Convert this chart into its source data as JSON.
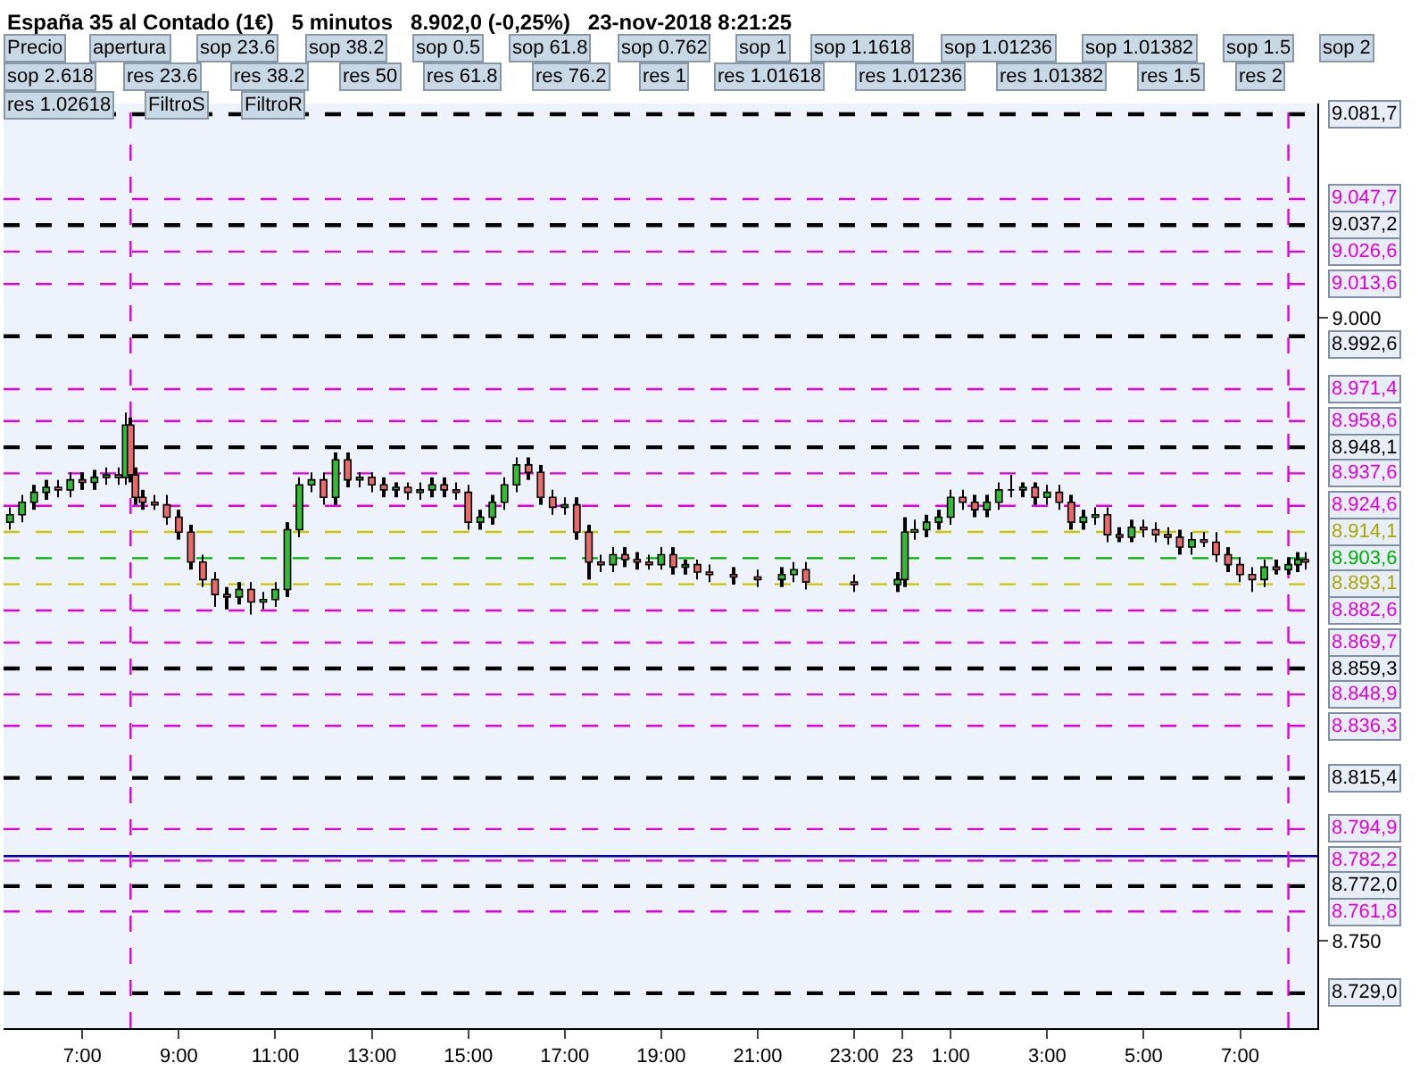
{
  "chart_data": {
    "type": "candlestick",
    "title": "España 35 al Contado (1€)   5 minutos   8.902,0 (-0,25%)   23-nov-2018 8:21:25",
    "x": [
      "2018-11-22T05:30",
      "2018-11-22T05:45",
      "2018-11-22T06:00",
      "2018-11-22T06:15",
      "2018-11-22T06:30",
      "2018-11-22T06:45",
      "2018-11-22T07:00",
      "2018-11-22T07:15",
      "2018-11-22T07:30",
      "2018-11-22T07:45",
      "2018-11-22T07:54",
      "2018-11-22T08:00",
      "2018-11-22T08:06",
      "2018-11-22T08:15",
      "2018-11-22T08:30",
      "2018-11-22T08:45",
      "2018-11-22T09:00",
      "2018-11-22T09:15",
      "2018-11-22T09:30",
      "2018-11-22T09:45",
      "2018-11-22T10:00",
      "2018-11-22T10:15",
      "2018-11-22T10:30",
      "2018-11-22T10:45",
      "2018-11-22T11:00",
      "2018-11-22T11:15",
      "2018-11-22T11:30",
      "2018-11-22T11:45",
      "2018-11-22T12:00",
      "2018-11-22T12:15",
      "2018-11-22T12:30",
      "2018-11-22T12:45",
      "2018-11-22T13:00",
      "2018-11-22T13:15",
      "2018-11-22T13:30",
      "2018-11-22T13:45",
      "2018-11-22T14:00",
      "2018-11-22T14:15",
      "2018-11-22T14:30",
      "2018-11-22T14:45",
      "2018-11-22T15:00",
      "2018-11-22T15:15",
      "2018-11-22T15:30",
      "2018-11-22T15:45",
      "2018-11-22T16:00",
      "2018-11-22T16:15",
      "2018-11-22T16:30",
      "2018-11-22T16:45",
      "2018-11-22T17:00",
      "2018-11-22T17:15",
      "2018-11-22T17:30",
      "2018-11-22T17:45",
      "2018-11-22T18:00",
      "2018-11-22T18:15",
      "2018-11-22T18:30",
      "2018-11-22T18:45",
      "2018-11-22T19:00",
      "2018-11-22T19:15",
      "2018-11-22T19:30",
      "2018-11-22T19:45",
      "2018-11-22T20:00",
      "2018-11-22T20:30",
      "2018-11-22T21:00",
      "2018-11-22T21:30",
      "2018-11-22T21:45",
      "2018-11-22T22:00",
      "2018-11-22T23:00",
      "2018-11-22T23:54",
      "2018-11-23T00:03",
      "2018-11-23T00:15",
      "2018-11-23T00:30",
      "2018-11-23T00:45",
      "2018-11-23T01:00",
      "2018-11-23T01:15",
      "2018-11-23T01:30",
      "2018-11-23T01:45",
      "2018-11-23T02:00",
      "2018-11-23T02:15",
      "2018-11-23T02:30",
      "2018-11-23T02:45",
      "2018-11-23T03:00",
      "2018-11-23T03:15",
      "2018-11-23T03:30",
      "2018-11-23T03:45",
      "2018-11-23T04:00",
      "2018-11-23T04:15",
      "2018-11-23T04:30",
      "2018-11-23T04:45",
      "2018-11-23T05:00",
      "2018-11-23T05:15",
      "2018-11-23T05:30",
      "2018-11-23T05:45",
      "2018-11-23T06:00",
      "2018-11-23T06:15",
      "2018-11-23T06:30",
      "2018-11-23T06:45",
      "2018-11-23T07:00",
      "2018-11-23T07:15",
      "2018-11-23T07:30",
      "2018-11-23T07:45",
      "2018-11-23T08:00",
      "2018-11-23T08:12",
      "2018-11-23T08:21"
    ],
    "ohlc": [
      [
        8918,
        8924,
        8915,
        8921
      ],
      [
        8921,
        8929,
        8918,
        8926
      ],
      [
        8926,
        8933,
        8923,
        8930
      ],
      [
        8930,
        8935,
        8927,
        8932
      ],
      [
        8932,
        8935,
        8928,
        8931
      ],
      [
        8931,
        8938,
        8928,
        8935
      ],
      [
        8935,
        8938,
        8931,
        8934
      ],
      [
        8934,
        8939,
        8931,
        8936
      ],
      [
        8936,
        8940,
        8933,
        8937
      ],
      [
        8937,
        8940,
        8933,
        8936
      ],
      [
        8936,
        8962,
        8933,
        8957
      ],
      [
        8957,
        8960,
        8934,
        8937
      ],
      [
        8937,
        8940,
        8925,
        8928
      ],
      [
        8928,
        8931,
        8923,
        8926
      ],
      [
        8926,
        8929,
        8923,
        8925
      ],
      [
        8925,
        8929,
        8917,
        8920
      ],
      [
        8920,
        8923,
        8911,
        8914
      ],
      [
        8914,
        8917,
        8899,
        8902
      ],
      [
        8902,
        8905,
        8892,
        8895
      ],
      [
        8895,
        8898,
        8884,
        8889
      ],
      [
        8889,
        8892,
        8883,
        8888
      ],
      [
        8888,
        8894,
        8885,
        8891
      ],
      [
        8891,
        8894,
        8881,
        8886
      ],
      [
        8886,
        8890,
        8883,
        8887
      ],
      [
        8887,
        8894,
        8884,
        8891
      ],
      [
        8891,
        8918,
        8888,
        8915
      ],
      [
        8915,
        8936,
        8912,
        8933
      ],
      [
        8933,
        8938,
        8930,
        8935
      ],
      [
        8935,
        8938,
        8925,
        8928
      ],
      [
        8928,
        8946,
        8925,
        8943
      ],
      [
        8943,
        8946,
        8932,
        8935
      ],
      [
        8935,
        8938,
        8932,
        8936
      ],
      [
        8936,
        8938,
        8930,
        8933
      ],
      [
        8933,
        8936,
        8928,
        8931
      ],
      [
        8931,
        8934,
        8928,
        8932
      ],
      [
        8932,
        8934,
        8927,
        8930
      ],
      [
        8930,
        8934,
        8927,
        8931
      ],
      [
        8931,
        8936,
        8928,
        8933
      ],
      [
        8933,
        8936,
        8928,
        8931
      ],
      [
        8931,
        8934,
        8927,
        8930
      ],
      [
        8930,
        8933,
        8915,
        8918
      ],
      [
        8918,
        8923,
        8915,
        8920
      ],
      [
        8920,
        8929,
        8917,
        8926
      ],
      [
        8926,
        8936,
        8923,
        8933
      ],
      [
        8933,
        8944,
        8930,
        8941
      ],
      [
        8941,
        8944,
        8935,
        8938
      ],
      [
        8938,
        8941,
        8925,
        8928
      ],
      [
        8928,
        8931,
        8921,
        8924
      ],
      [
        8924,
        8928,
        8921,
        8925
      ],
      [
        8925,
        8928,
        8911,
        8914
      ],
      [
        8914,
        8917,
        8895,
        8902
      ],
      [
        8902,
        8905,
        8898,
        8901
      ],
      [
        8901,
        8908,
        8898,
        8905
      ],
      [
        8905,
        8908,
        8900,
        8903
      ],
      [
        8903,
        8906,
        8899,
        8902
      ],
      [
        8902,
        8905,
        8899,
        8901
      ],
      [
        8901,
        8908,
        8899,
        8905
      ],
      [
        8905,
        8908,
        8897,
        8900
      ],
      [
        8900,
        8903,
        8897,
        8901
      ],
      [
        8901,
        8903,
        8895,
        8898
      ],
      [
        8898,
        8901,
        8894,
        8897
      ],
      [
        8897,
        8900,
        8893,
        8896
      ],
      [
        8896,
        8899,
        8892,
        8895
      ],
      [
        8895,
        8900,
        8892,
        8897
      ],
      [
        8897,
        8902,
        8894,
        8899
      ],
      [
        8899,
        8902,
        8891,
        8894
      ],
      [
        8894,
        8897,
        8890,
        8893
      ],
      [
        8893,
        8898,
        8890,
        8895
      ],
      [
        8895,
        8920,
        8892,
        8914
      ],
      [
        8914,
        8919,
        8911,
        8915
      ],
      [
        8915,
        8921,
        8912,
        8918
      ],
      [
        8918,
        8923,
        8915,
        8920
      ],
      [
        8920,
        8931,
        8917,
        8928
      ],
      [
        8928,
        8931,
        8923,
        8926
      ],
      [
        8926,
        8929,
        8920,
        8923
      ],
      [
        8923,
        8929,
        8920,
        8926
      ],
      [
        8926,
        8934,
        8923,
        8931
      ],
      [
        8931,
        8937,
        8928,
        8931
      ],
      [
        8931,
        8934,
        8928,
        8932
      ],
      [
        8932,
        8934,
        8925,
        8928
      ],
      [
        8928,
        8933,
        8925,
        8930
      ],
      [
        8930,
        8933,
        8923,
        8926
      ],
      [
        8926,
        8929,
        8915,
        8918
      ],
      [
        8918,
        8923,
        8915,
        8920
      ],
      [
        8920,
        8924,
        8917,
        8921
      ],
      [
        8921,
        8924,
        8910,
        8913
      ],
      [
        8913,
        8916,
        8910,
        8912
      ],
      [
        8912,
        8919,
        8910,
        8916
      ],
      [
        8916,
        8919,
        8912,
        8915
      ],
      [
        8915,
        8918,
        8910,
        8913
      ],
      [
        8913,
        8916,
        8909,
        8912
      ],
      [
        8912,
        8915,
        8905,
        8908
      ],
      [
        8908,
        8914,
        8905,
        8911
      ],
      [
        8911,
        8914,
        8908,
        8910
      ],
      [
        8910,
        8914,
        8902,
        8905
      ],
      [
        8905,
        8908,
        8898,
        8901
      ],
      [
        8901,
        8904,
        8894,
        8897
      ],
      [
        8897,
        8900,
        8890,
        8895
      ],
      [
        8895,
        8903,
        8892,
        8900
      ],
      [
        8900,
        8903,
        8897,
        8899
      ],
      [
        8899,
        8904,
        8897,
        8901
      ],
      [
        8901,
        8906,
        8898,
        8903
      ],
      [
        8903,
        8906,
        8899,
        8902
      ]
    ],
    "xlim": [
      "2018-11-22T05:22",
      "2018-11-23T08:36"
    ],
    "xticks": [
      {
        "value": "2018-11-22T07:00",
        "label": "7:00"
      },
      {
        "value": "2018-11-22T09:00",
        "label": "9:00"
      },
      {
        "value": "2018-11-22T11:00",
        "label": "11:00"
      },
      {
        "value": "2018-11-22T13:00",
        "label": "13:00"
      },
      {
        "value": "2018-11-22T15:00",
        "label": "15:00"
      },
      {
        "value": "2018-11-22T17:00",
        "label": "17:00"
      },
      {
        "value": "2018-11-22T19:00",
        "label": "19:00"
      },
      {
        "value": "2018-11-22T21:00",
        "label": "21:00"
      },
      {
        "value": "2018-11-22T23:00",
        "label": "23:00"
      },
      {
        "value": "2018-11-23T00:00",
        "label": "23"
      },
      {
        "value": "2018-11-23T01:00",
        "label": "1:00"
      },
      {
        "value": "2018-11-23T03:00",
        "label": "3:00"
      },
      {
        "value": "2018-11-23T05:00",
        "label": "5:00"
      },
      {
        "value": "2018-11-23T07:00",
        "label": "7:00"
      }
    ],
    "ylim": [
      8715,
      9086
    ],
    "yticks": [
      {
        "value": 8750,
        "label": "8.750"
      },
      {
        "value": 9000,
        "label": "9.000"
      }
    ],
    "grid": false,
    "line_style": "dashed",
    "annotations": [
      "Precio",
      "apertura",
      "sop 23.6",
      "sop 38.2",
      "sop 0.5",
      "sop 61.8",
      "sop 0.762",
      "sop 1",
      "sop 1.1618",
      "sop 1.01236",
      "sop 1.01382",
      "sop 1.5",
      "sop 2",
      "sop 2.618",
      "res 23.6",
      "res 38.2",
      "res 50",
      "res 61.8",
      "res 76.2",
      "res 1",
      "res 1.01618",
      "res 1.01236",
      "res 1.01382",
      "res 1.5",
      "res 2",
      "res 1.02618",
      "FiltroS",
      "FiltroR"
    ],
    "ref_lines": [
      {
        "axis": "y",
        "value": 9081.7,
        "label": "9.081,7",
        "color": "#000000"
      },
      {
        "axis": "y",
        "value": 9047.7,
        "label": "9.047,7",
        "color": "#e000e0"
      },
      {
        "axis": "y",
        "value": 9037.2,
        "label": "9.037,2",
        "color": "#000000"
      },
      {
        "axis": "y",
        "value": 9026.6,
        "label": "9.026,6",
        "color": "#e000e0"
      },
      {
        "axis": "y",
        "value": 9013.6,
        "label": "9.013,6",
        "color": "#e000e0"
      },
      {
        "axis": "y",
        "value": 8992.6,
        "label": "8.992,6",
        "color": "#000000"
      },
      {
        "axis": "y",
        "value": 8971.4,
        "label": "8.971,4",
        "color": "#e000e0"
      },
      {
        "axis": "y",
        "value": 8958.6,
        "label": "8.958,6",
        "color": "#e000e0"
      },
      {
        "axis": "y",
        "value": 8948.1,
        "label": "8.948,1",
        "color": "#000000"
      },
      {
        "axis": "y",
        "value": 8937.6,
        "label": "8.937,6",
        "color": "#e000e0"
      },
      {
        "axis": "y",
        "value": 8924.6,
        "label": "8.924,6",
        "color": "#e000e0"
      },
      {
        "axis": "y",
        "value": 8914.1,
        "label": "8.914,1",
        "color": "#c8c800"
      },
      {
        "axis": "y",
        "value": 8903.6,
        "label": "8.903,6",
        "color": "#00b000"
      },
      {
        "axis": "y",
        "value": 8893.1,
        "label": "8.893,1",
        "color": "#c8c800"
      },
      {
        "axis": "y",
        "value": 8882.6,
        "label": "8.882,6",
        "color": "#e000e0"
      },
      {
        "axis": "y",
        "value": 8869.7,
        "label": "8.869,7",
        "color": "#e000e0"
      },
      {
        "axis": "y",
        "value": 8859.3,
        "label": "8.859,3",
        "color": "#000000"
      },
      {
        "axis": "y",
        "value": 8848.9,
        "label": "8.848,9",
        "color": "#e000e0"
      },
      {
        "axis": "y",
        "value": 8836.3,
        "label": "8.836,3",
        "color": "#e000e0"
      },
      {
        "axis": "y",
        "value": 8815.4,
        "label": "8.815,4",
        "color": "#000000"
      },
      {
        "axis": "y",
        "value": 8794.9,
        "label": "8.794,9",
        "color": "#e000e0"
      },
      {
        "axis": "y",
        "value": 8782.2,
        "label": "8.782,2",
        "color": "#e000e0"
      },
      {
        "axis": "y",
        "value": 8772.0,
        "label": "8.772,0",
        "color": "#000000"
      },
      {
        "axis": "y",
        "value": 8761.8,
        "label": "8.761,8",
        "color": "#e000e0"
      },
      {
        "axis": "y",
        "value": 8729.0,
        "label": "8.729,0",
        "color": "#000000"
      },
      {
        "axis": "y",
        "value": 8784,
        "color": "#0000b0",
        "line_style": "solid"
      },
      {
        "axis": "x",
        "value": "2018-11-22T08:00",
        "color": "#e000e0"
      },
      {
        "axis": "x",
        "value": "2018-11-23T08:00",
        "color": "#e000e0"
      }
    ]
  }
}
